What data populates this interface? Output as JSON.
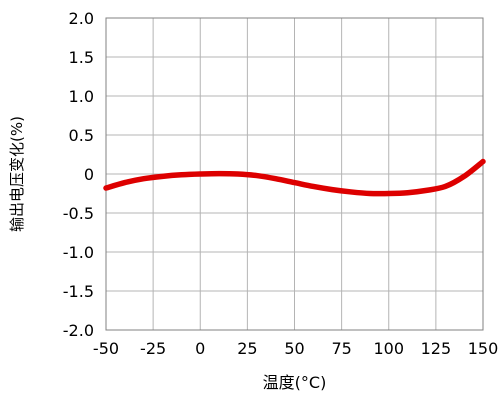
{
  "chart_data": {
    "type": "line",
    "title": "",
    "xlabel": "温度(°C)",
    "ylabel": "输出电压变化(%)",
    "xlim": [
      -50,
      150
    ],
    "ylim": [
      -2.0,
      2.0
    ],
    "x_ticks": [
      -50,
      -25,
      0,
      25,
      50,
      75,
      100,
      125,
      150
    ],
    "x_tick_labels": [
      "-50",
      "-25",
      "0",
      "25",
      "50",
      "75",
      "100",
      "125",
      "150"
    ],
    "y_ticks": [
      2.0,
      1.5,
      1.0,
      0.5,
      0,
      -0.5,
      -1.0,
      -1.5,
      -2.0
    ],
    "y_tick_labels": [
      "2.0",
      "1.5",
      "1.0",
      "0.5",
      "0",
      "-0.5",
      "-1.0",
      "-1.5",
      "-2.0"
    ],
    "grid": true,
    "series": [
      {
        "color": "#dd0000",
        "x": [
          -50,
          -40,
          -30,
          -20,
          -10,
          0,
          10,
          20,
          30,
          40,
          50,
          60,
          70,
          80,
          90,
          100,
          110,
          120,
          130,
          140,
          150
        ],
        "y": [
          -0.18,
          -0.11,
          -0.06,
          -0.03,
          -0.01,
          0.0,
          0.005,
          0.0,
          -0.02,
          -0.06,
          -0.11,
          -0.16,
          -0.2,
          -0.23,
          -0.25,
          -0.25,
          -0.24,
          -0.21,
          -0.16,
          -0.03,
          0.16
        ]
      }
    ],
    "colors": {
      "grid": "#b4b4b4",
      "axis": "#808080",
      "line": "#dd0000",
      "text": "#000000"
    }
  }
}
